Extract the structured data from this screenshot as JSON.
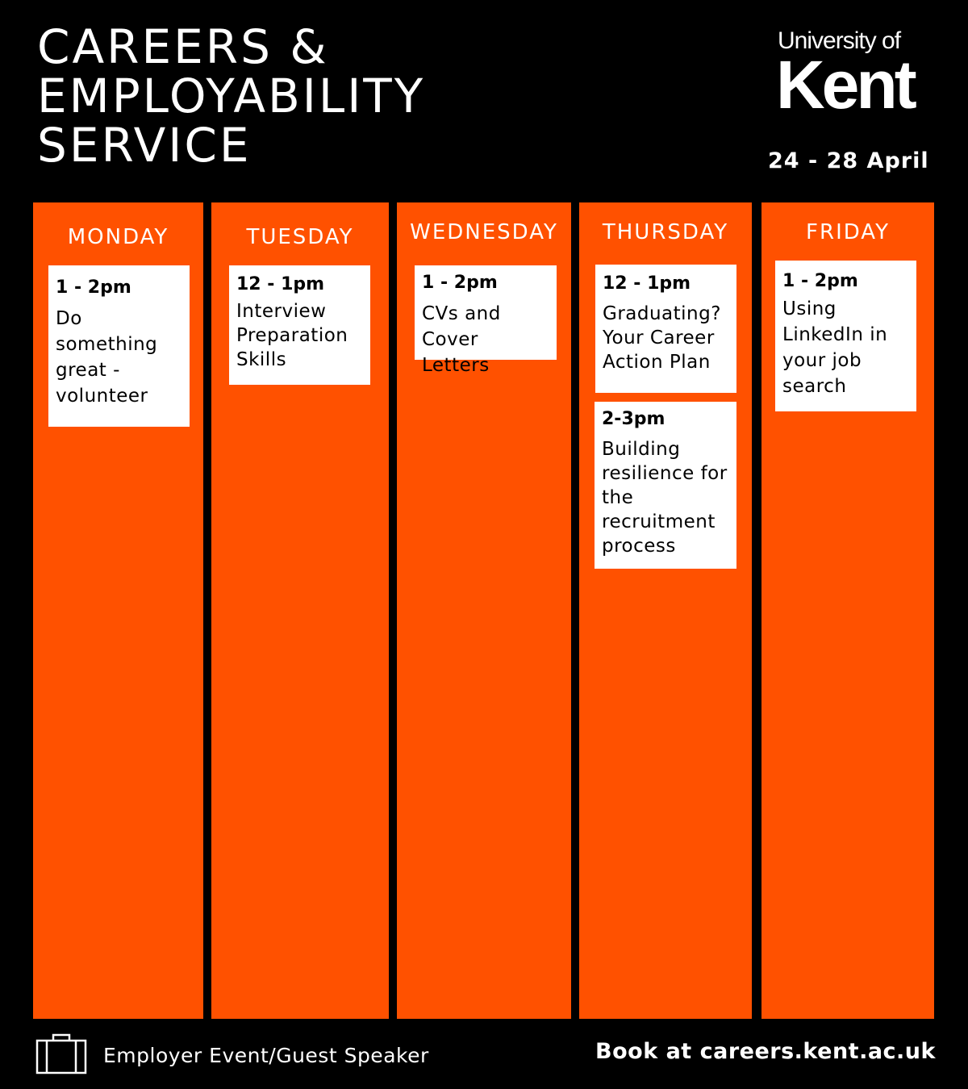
{
  "header": {
    "title": "CAREERS &\nEMPLOYABILITY\nSERVICE",
    "logo_top": "University of",
    "logo_main": "Kent",
    "dates": "24 - 28 April"
  },
  "days": [
    {
      "name": "MONDAY",
      "events": [
        {
          "time": "1 - 2pm",
          "title": "Do something great - volunteer"
        }
      ]
    },
    {
      "name": "TUESDAY",
      "events": [
        {
          "time": "12 - 1pm",
          "title": "Interview Preparation Skills"
        }
      ]
    },
    {
      "name": "WEDNESDAY",
      "events": [
        {
          "time": "1 - 2pm",
          "title": "CVs and Cover Letters"
        }
      ]
    },
    {
      "name": "THURSDAY",
      "events": [
        {
          "time": "12 - 1pm",
          "title": "Graduating? Your Career Action Plan"
        },
        {
          "time": "2-3pm",
          "title": "Building resilience for the recruitment process"
        }
      ]
    },
    {
      "name": "FRIDAY",
      "events": [
        {
          "time": "1 - 2pm",
          "title": "Using LinkedIn in your job search"
        }
      ]
    }
  ],
  "footer": {
    "legend_icon": "briefcase-icon",
    "legend_label": "Employer Event/Guest Speaker",
    "booking": "Book at careers.kent.ac.uk"
  },
  "colors": {
    "background": "#000000",
    "accent": "#ff5100",
    "card": "#ffffff"
  }
}
